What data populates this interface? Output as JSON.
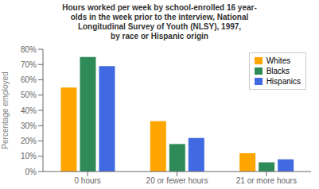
{
  "chart_data": {
    "type": "bar",
    "title": "Hours worked per week by school-enrolled 16 year-\nolds in the week prior to the interview, National\nLongitudinal Survey of Youth (NLSY), 1997,\nby race or Hispanic origin",
    "categories": [
      "0 hours",
      "20 or fewer hours",
      "21 or more hours"
    ],
    "series": [
      {
        "name": "Whites",
        "color": "#FFA500",
        "values": [
          55,
          33,
          12
        ]
      },
      {
        "name": "Blacks",
        "color": "#2E8B57",
        "values": [
          75,
          18,
          6
        ]
      },
      {
        "name": "Hispanics",
        "color": "#4169E1",
        "values": [
          69,
          22,
          8
        ]
      }
    ],
    "ylabel": "Percentage employed",
    "ylim": [
      0,
      80
    ],
    "yticks": [
      {
        "value": 0,
        "label": "0%"
      },
      {
        "value": 10,
        "label": "10%"
      },
      {
        "value": 20,
        "label": "20%"
      },
      {
        "value": 30,
        "label": "30%"
      },
      {
        "value": 40,
        "label": "40%"
      },
      {
        "value": 50,
        "label": "50%"
      },
      {
        "value": 60,
        "label": "60%"
      },
      {
        "value": 70,
        "label": "70%"
      },
      {
        "value": 80,
        "label": "80%"
      }
    ],
    "legend": "upper right",
    "grid": false
  }
}
